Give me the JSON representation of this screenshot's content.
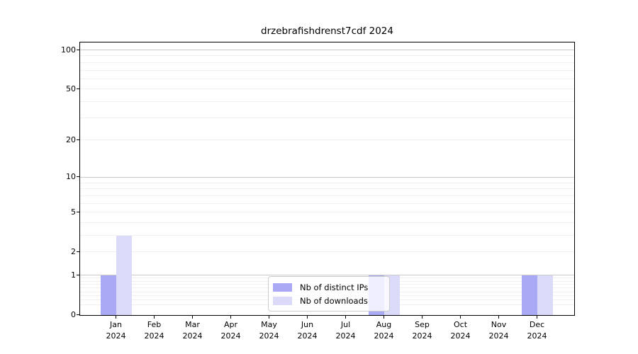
{
  "chart_data": {
    "type": "bar",
    "title": "drzebrafishdrenst7cdf 2024",
    "categories": [
      "Jan",
      "Feb",
      "Mar",
      "Apr",
      "May",
      "Jun",
      "Jul",
      "Aug",
      "Sep",
      "Oct",
      "Nov",
      "Dec"
    ],
    "year_label": "2024",
    "series": [
      {
        "name": "Nb of distinct IPs",
        "color": "#a9a9f6",
        "values": [
          1,
          0,
          0,
          0,
          0,
          0,
          0,
          1,
          0,
          0,
          0,
          1
        ]
      },
      {
        "name": "Nb of downloads",
        "color": "#dbdbf9",
        "values": [
          3,
          0,
          0,
          0,
          0,
          0,
          0,
          1,
          0,
          0,
          0,
          1
        ]
      }
    ],
    "xlabel": "",
    "ylabel": "",
    "yscale": "log1p",
    "ylim": [
      0,
      114
    ],
    "yticks": [
      0,
      1,
      2,
      5,
      10,
      20,
      50,
      100
    ],
    "grid": {
      "orientation": "horizontal",
      "major": [
        1,
        10,
        100
      ],
      "minor": [
        0.2,
        0.3,
        0.4,
        0.5,
        0.6,
        0.7,
        0.8,
        0.9,
        2,
        3,
        4,
        5,
        6,
        7,
        8,
        9,
        20,
        30,
        40,
        50,
        60,
        70,
        80,
        90
      ]
    },
    "legend": {
      "position": "lower-center",
      "entries": [
        "Nb of distinct IPs",
        "Nb of downloads"
      ]
    },
    "colors": {
      "distinct_ips_bar": "#a9a9f6",
      "downloads_bar": "#dbdbf9",
      "major_grid": "#c9c9c9",
      "minor_grid": "#f0f0f0",
      "axis": "#000000"
    }
  }
}
